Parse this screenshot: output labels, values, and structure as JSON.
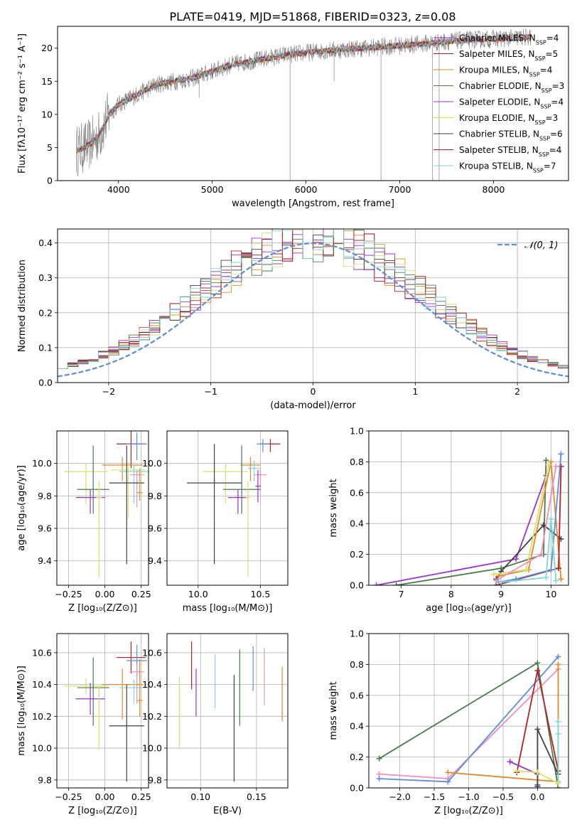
{
  "figure": {
    "title": "PLATE=0419, MJD=51868, FIBERID=0323, z=0.08"
  },
  "colors": {
    "data": "#808080",
    "chabrier_miles": "#8b2de0",
    "salpeter_miles": "#b22222",
    "kroupa_miles": "#e08a2c",
    "chabrier_elodie": "#4a7a4a",
    "salpeter_elodie": "#9932cc",
    "kroupa_elodie": "#d8e06a",
    "chabrier_stelib": "#404040",
    "salpeter_stelib": "#b22222",
    "kroupa_stelib": "#7fd6d6",
    "normal": "#5b8ed8"
  },
  "chart_data": [
    {
      "id": "spectrum",
      "type": "line",
      "xlabel": "wavelength [Angstrom, rest frame]",
      "ylabel": "Flux [fλ10⁻¹⁷ erg cm⁻² s⁻¹ A⁻¹]",
      "xlim": [
        3350,
        8800
      ],
      "ylim": [
        0,
        23.3
      ],
      "xticks": [
        4000,
        5000,
        6000,
        7000,
        8000
      ],
      "yticks": [
        0,
        5,
        10,
        15,
        20
      ],
      "grid": false,
      "legend": "top-right",
      "legend_entries": [
        "Chabrier MILES, N_SSP=4",
        "Salpeter MILES, N_SSP=5",
        "Kroupa MILES, N_SSP=4",
        "Chabrier ELODIE, N_SSP=3",
        "Salpeter ELODIE, N_SSP=4",
        "Kroupa ELODIE, N_SSP=3",
        "Chabrier STELIB, N_SSP=6",
        "Salpeter STELIB, N_SSP=4",
        "Kroupa STELIB, N_SSP=7"
      ],
      "continuum": {
        "x": [
          3550,
          3700,
          3800,
          3900,
          4000,
          4200,
          4400,
          4600,
          4800,
          5000,
          5200,
          5400,
          5600,
          5800,
          6000,
          6200,
          6400,
          6600,
          6800,
          7000,
          7200,
          7400,
          7600,
          7800,
          8000,
          8200,
          8400
        ],
        "y": [
          4.5,
          5.5,
          7.0,
          10.0,
          11.5,
          13.0,
          14.5,
          15.0,
          15.5,
          16.5,
          17.5,
          18.0,
          18.5,
          19.0,
          19.3,
          19.6,
          19.8,
          20.0,
          20.2,
          20.4,
          20.6,
          20.9,
          21.1,
          21.3,
          21.4,
          21.5,
          21.7
        ]
      }
    },
    {
      "id": "residuals",
      "type": "line",
      "xlabel": "(data-model)/error",
      "ylabel": "Normed distribution",
      "xlim": [
        -2.5,
        2.5
      ],
      "ylim": [
        0,
        0.44
      ],
      "xticks": [
        -2,
        -1,
        0,
        1,
        2
      ],
      "yticks": [
        0.0,
        0.1,
        0.2,
        0.3,
        0.4
      ],
      "grid": true,
      "legend": "top-right",
      "series": [
        {
          "name": "𝒩(0, 1)",
          "x": [
            -2.5,
            2.5
          ],
          "mu": 0,
          "sigma": 1
        }
      ]
    },
    {
      "id": "age_vs_Z",
      "type": "scatter",
      "xlabel": "Z [log₁₀(Z/Z⊙)]",
      "ylabel": "age  [log₁₀(age/yr)]",
      "xlim": [
        -0.33,
        0.3
      ],
      "ylim": [
        9.25,
        10.2
      ],
      "xticks": [
        -0.25,
        0.0,
        0.25
      ],
      "yticks": [
        9.4,
        9.6,
        9.8,
        10.0
      ],
      "grid": true,
      "points": [
        {
          "x": 0.18,
          "y": 10.12,
          "xerr": 0.1,
          "yerr_lo": 0.15,
          "yerr_hi": 0.08,
          "color": "#b22222"
        },
        {
          "x": 0.22,
          "y": 10.12,
          "xerr": 0.07,
          "yerr_lo": 0.1,
          "yerr_hi": 0.07,
          "color": "#5b8ed8"
        },
        {
          "x": 0.12,
          "y": 9.99,
          "xerr": 0.14,
          "yerr_lo": 0.1,
          "yerr_hi": 0.05,
          "color": "#e08a2c"
        },
        {
          "x": 0.16,
          "y": 9.96,
          "xerr": 0.12,
          "yerr_lo": 0.3,
          "yerr_hi": 0.05,
          "color": "#d8e06a"
        },
        {
          "x": 0.2,
          "y": 9.95,
          "xerr": 0.1,
          "yerr_lo": 0.2,
          "yerr_hi": 0.04,
          "color": "#7fd6d6"
        },
        {
          "x": -0.13,
          "y": 9.95,
          "xerr": 0.15,
          "yerr_lo": 0.2,
          "yerr_hi": 0.05,
          "color": "#d8e06a"
        },
        {
          "x": 0.22,
          "y": 9.93,
          "xerr": 0.05,
          "yerr_lo": 0.2,
          "yerr_hi": 0.03,
          "color": "#f08cc0"
        },
        {
          "x": 0.15,
          "y": 9.88,
          "xerr": 0.12,
          "yerr_lo": 0.5,
          "yerr_hi": 0.23,
          "color": "#404040"
        },
        {
          "x": -0.08,
          "y": 9.84,
          "xerr": 0.11,
          "yerr_lo": 0.15,
          "yerr_hi": 0.27,
          "color": "#4a7a4a"
        },
        {
          "x": -0.1,
          "y": 9.79,
          "xerr": 0.1,
          "yerr_lo": 0.1,
          "yerr_hi": 0.05,
          "color": "#9932cc"
        },
        {
          "x": -0.04,
          "y": 9.79,
          "xerr": 0.02,
          "yerr_lo": 0.49,
          "yerr_hi": 0.1,
          "color": "#d8e06a"
        },
        {
          "x": 0.24,
          "y": 9.82,
          "xerr": 0.02,
          "yerr_lo": 0.05,
          "yerr_hi": 0.15,
          "color": "#e08a2c"
        }
      ]
    },
    {
      "id": "age_vs_mass",
      "type": "scatter",
      "xlabel": "mass [log₁₀(M/M⊙)]",
      "ylabel": "",
      "xlim": [
        9.75,
        10.72
      ],
      "ylim": [
        9.25,
        10.2
      ],
      "xticks": [
        10.0,
        10.5
      ],
      "yticks": [
        9.4,
        9.6,
        9.8,
        10.0
      ],
      "grid": true,
      "points": [
        {
          "x": 10.58,
          "y": 10.12,
          "xerr": 0.08,
          "yerr_lo": 0.05,
          "yerr_hi": 0.03,
          "color": "#b22222"
        },
        {
          "x": 10.52,
          "y": 10.12,
          "xerr": 0.05,
          "yerr_lo": 0.05,
          "yerr_hi": 0.03,
          "color": "#5b8ed8"
        },
        {
          "x": 10.42,
          "y": 9.99,
          "xerr": 0.08,
          "yerr_lo": 0.1,
          "yerr_hi": 0.05,
          "color": "#e08a2c"
        },
        {
          "x": 10.45,
          "y": 9.97,
          "xerr": 0.05,
          "yerr_lo": 0.08,
          "yerr_hi": 0.05,
          "color": "#7fd6d6"
        },
        {
          "x": 10.22,
          "y": 9.95,
          "xerr": 0.18,
          "yerr_lo": 0.2,
          "yerr_hi": 0.05,
          "color": "#d8e06a"
        },
        {
          "x": 10.5,
          "y": 9.93,
          "xerr": 0.05,
          "yerr_lo": 0.1,
          "yerr_hi": 0.03,
          "color": "#f08cc0"
        },
        {
          "x": 10.13,
          "y": 9.88,
          "xerr": 0.22,
          "yerr_lo": 0.5,
          "yerr_hi": 0.24,
          "color": "#404040"
        },
        {
          "x": 10.35,
          "y": 9.84,
          "xerr": 0.15,
          "yerr_lo": 0.15,
          "yerr_hi": 0.27,
          "color": "#4a7a4a"
        },
        {
          "x": 10.32,
          "y": 9.79,
          "xerr": 0.08,
          "yerr_lo": 0.1,
          "yerr_hi": 0.05,
          "color": "#9932cc"
        },
        {
          "x": 10.4,
          "y": 9.79,
          "xerr": 0.02,
          "yerr_lo": 0.49,
          "yerr_hi": 0.1,
          "color": "#d8e06a"
        },
        {
          "x": 10.48,
          "y": 9.86,
          "xerr": 0.02,
          "yerr_lo": 0.1,
          "yerr_hi": 0.1,
          "color": "#9932cc"
        }
      ]
    },
    {
      "id": "weight_vs_age",
      "type": "line",
      "xlabel": "age  [log₁₀(age/yr)]",
      "ylabel": "mass weight",
      "xlim": [
        6.35,
        10.35
      ],
      "ylim": [
        0,
        1.0
      ],
      "xticks": [
        7,
        8,
        9,
        10
      ],
      "yticks": [
        0.0,
        0.2,
        0.4,
        0.6,
        0.8,
        1.0
      ],
      "grid": true,
      "series": [
        {
          "color": "#9932cc",
          "x": [
            6.5,
            9.3,
            9.9
          ],
          "y": [
            0.0,
            0.17,
            0.71
          ]
        },
        {
          "color": "#4a7a4a",
          "x": [
            6.9,
            9.0,
            9.85,
            9.9
          ],
          "y": [
            0.0,
            0.11,
            0.2,
            0.81
          ]
        },
        {
          "color": "#404040",
          "x": [
            8.9,
            9.0,
            9.85,
            10.2
          ],
          "y": [
            0.04,
            0.09,
            0.39,
            0.3
          ]
        },
        {
          "color": "#e08a2c",
          "x": [
            8.95,
            9.55,
            10.0,
            10.2
          ],
          "y": [
            0.06,
            0.1,
            0.8,
            0.04
          ]
        },
        {
          "color": "#d8e06a",
          "x": [
            8.85,
            9.5,
            9.95
          ],
          "y": [
            0.07,
            0.1,
            0.78
          ]
        },
        {
          "color": "#b22222",
          "x": [
            8.9,
            10.15,
            10.2
          ],
          "y": [
            0.0,
            0.11,
            0.77
          ]
        },
        {
          "color": "#5b8ed8",
          "x": [
            8.95,
            9.3,
            10.0,
            10.2
          ],
          "y": [
            0.02,
            0.04,
            0.1,
            0.85
          ]
        },
        {
          "color": "#7fd6d6",
          "x": [
            9.0,
            9.9,
            10.0,
            10.1
          ],
          "y": [
            0.02,
            0.05,
            0.43,
            0.03
          ]
        },
        {
          "color": "#f08cc0",
          "x": [
            8.9,
            9.8,
            10.1
          ],
          "y": [
            0.03,
            0.2,
            0.77
          ]
        }
      ]
    },
    {
      "id": "mass_vs_Z",
      "type": "scatter",
      "xlabel": "Z [log₁₀(Z/Z⊙)]",
      "ylabel": "mass [log₁₀(M/M⊙)]",
      "xlim": [
        -0.33,
        0.3
      ],
      "ylim": [
        9.75,
        10.72
      ],
      "xticks": [
        -0.25,
        0.0,
        0.25
      ],
      "yticks": [
        9.8,
        10.0,
        10.2,
        10.4,
        10.6
      ],
      "grid": true,
      "points": [
        {
          "x": 0.18,
          "y": 10.57,
          "xerr": 0.1,
          "yerr_lo": 0.1,
          "yerr_hi": 0.1,
          "color": "#b22222"
        },
        {
          "x": 0.22,
          "y": 10.55,
          "xerr": 0.07,
          "yerr_lo": 0.1,
          "yerr_hi": 0.1,
          "color": "#5b8ed8"
        },
        {
          "x": 0.22,
          "y": 10.48,
          "xerr": 0.05,
          "yerr_lo": 0.2,
          "yerr_hi": 0.05,
          "color": "#f08cc0"
        },
        {
          "x": 0.12,
          "y": 10.4,
          "xerr": 0.14,
          "yerr_lo": 0.22,
          "yerr_hi": 0.1,
          "color": "#e08a2c"
        },
        {
          "x": 0.2,
          "y": 10.38,
          "xerr": 0.1,
          "yerr_lo": 0.1,
          "yerr_hi": 0.05,
          "color": "#7fd6d6"
        },
        {
          "x": -0.13,
          "y": 10.39,
          "xerr": 0.15,
          "yerr_lo": 0.05,
          "yerr_hi": 0.05,
          "color": "#d8e06a"
        },
        {
          "x": -0.08,
          "y": 10.38,
          "xerr": 0.11,
          "yerr_lo": 0.24,
          "yerr_hi": 0.19,
          "color": "#4a7a4a"
        },
        {
          "x": -0.1,
          "y": 10.31,
          "xerr": 0.1,
          "yerr_lo": 0.1,
          "yerr_hi": 0.1,
          "color": "#9932cc"
        },
        {
          "x": -0.04,
          "y": 10.2,
          "xerr": 0.02,
          "yerr_lo": 0.21,
          "yerr_hi": 0.2,
          "color": "#d8e06a"
        },
        {
          "x": 0.15,
          "y": 10.14,
          "xerr": 0.12,
          "yerr_lo": 0.35,
          "yerr_hi": 0.26,
          "color": "#404040"
        },
        {
          "x": 0.24,
          "y": 10.3,
          "xerr": 0.02,
          "yerr_lo": 0.1,
          "yerr_hi": 0.26,
          "color": "#e08a2c"
        }
      ]
    },
    {
      "id": "mass_vs_ebv",
      "type": "scatter",
      "xlabel": "E(B-V)",
      "ylabel": "",
      "xlim": [
        0.07,
        0.178
      ],
      "ylim": [
        9.75,
        10.72
      ],
      "xticks": [
        0.1,
        0.15
      ],
      "yticks": [
        9.8,
        10.0,
        10.2,
        10.4,
        10.6
      ],
      "grid": true,
      "points": [
        {
          "x": 0.081,
          "y": 10.22,
          "xerr": 0,
          "yerr_lo": 0.23,
          "yerr_hi": 0.23,
          "color": "#d8e06a"
        },
        {
          "x": 0.092,
          "y": 10.52,
          "xerr": 0,
          "yerr_lo": 0.15,
          "yerr_hi": 0.15,
          "color": "#b22222"
        },
        {
          "x": 0.096,
          "y": 10.35,
          "xerr": 0,
          "yerr_lo": 0.15,
          "yerr_hi": 0.15,
          "color": "#9932cc"
        },
        {
          "x": 0.113,
          "y": 10.42,
          "xerr": 0,
          "yerr_lo": 0.17,
          "yerr_hi": 0.17,
          "color": "#7fd6d6"
        },
        {
          "x": 0.13,
          "y": 10.13,
          "xerr": 0,
          "yerr_lo": 0.34,
          "yerr_hi": 0.33,
          "color": "#404040"
        },
        {
          "x": 0.135,
          "y": 10.38,
          "xerr": 0,
          "yerr_lo": 0.24,
          "yerr_hi": 0.24,
          "color": "#4a7a4a"
        },
        {
          "x": 0.147,
          "y": 10.5,
          "xerr": 0,
          "yerr_lo": 0.14,
          "yerr_hi": 0.14,
          "color": "#5b8ed8"
        },
        {
          "x": 0.157,
          "y": 10.45,
          "xerr": 0,
          "yerr_lo": 0.18,
          "yerr_hi": 0.18,
          "color": "#f08cc0"
        },
        {
          "x": 0.173,
          "y": 10.34,
          "xerr": 0,
          "yerr_lo": 0.17,
          "yerr_hi": 0.17,
          "color": "#e08a2c"
        }
      ]
    },
    {
      "id": "weight_vs_Z",
      "type": "line",
      "xlabel": "Z [log₁₀(Z/Z⊙)]",
      "ylabel": "mass weight",
      "xlim": [
        -2.45,
        0.45
      ],
      "ylim": [
        0,
        1.0
      ],
      "xticks": [
        -2.0,
        -1.5,
        -1.0,
        -0.5,
        0.0
      ],
      "yticks": [
        0.0,
        0.2,
        0.4,
        0.6,
        0.8,
        1.0
      ],
      "grid": true,
      "series": [
        {
          "color": "#4a7a4a",
          "x": [
            -2.3,
            0.0,
            0.3
          ],
          "y": [
            0.19,
            0.81,
            0.0
          ]
        },
        {
          "color": "#f08cc0",
          "x": [
            -2.3,
            -1.3,
            0.3
          ],
          "y": [
            0.09,
            0.06,
            0.77
          ]
        },
        {
          "color": "#5b8ed8",
          "x": [
            -2.3,
            -1.3,
            0.3
          ],
          "y": [
            0.06,
            0.04,
            0.85
          ]
        },
        {
          "color": "#e08a2c",
          "x": [
            -1.3,
            0.3,
            0.3
          ],
          "y": [
            0.1,
            0.04,
            0.8
          ]
        },
        {
          "color": "#b22222",
          "x": [
            -0.3,
            0.0,
            0.3
          ],
          "y": [
            0.1,
            0.76,
            0.11
          ]
        },
        {
          "color": "#9932cc",
          "x": [
            -0.4,
            0.0,
            0.0
          ],
          "y": [
            0.17,
            0.09,
            0.02
          ]
        },
        {
          "color": "#404040",
          "x": [
            0.0,
            0.0,
            0.3
          ],
          "y": [
            0.01,
            0.38,
            0.09
          ]
        },
        {
          "color": "#7fd6d6",
          "x": [
            0.3,
            0.3,
            0.3
          ],
          "y": [
            0.04,
            0.43,
            0.35
          ]
        },
        {
          "color": "#d8e06a",
          "x": [
            -0.3,
            0.0,
            0.3
          ],
          "y": [
            0.11,
            0.1,
            0.03
          ]
        }
      ]
    }
  ]
}
